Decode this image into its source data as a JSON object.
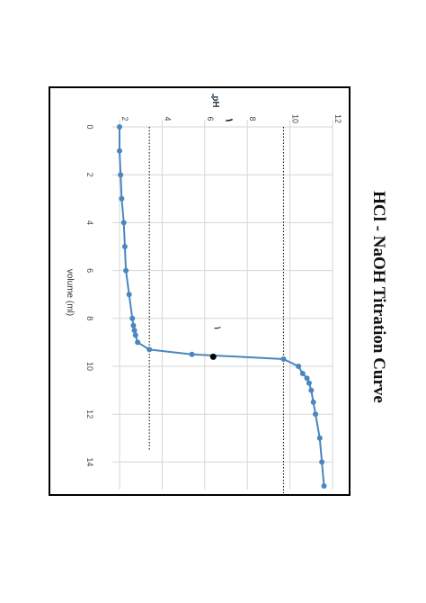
{
  "chart_data": {
    "type": "line",
    "title": "HCl - NaOH Titration Curve",
    "xlabel": "volume (ml)",
    "ylabel": "pH",
    "xlim": [
      0,
      15
    ],
    "ylim": [
      2,
      12
    ],
    "x_ticks": [
      "0",
      "2",
      "4",
      "6",
      "8",
      "10",
      "12",
      "14"
    ],
    "y_ticks": [
      "2",
      "4",
      "6",
      "8",
      "10",
      "12"
    ],
    "grid": true,
    "orientation": "rotated 90° clockwise",
    "series_color": "#4a86bf",
    "series": [
      {
        "name": "pH",
        "x": [
          0,
          1,
          2,
          3,
          4,
          5,
          6,
          7,
          8,
          8.3,
          8.5,
          8.7,
          9,
          9.3,
          9.5,
          9.7,
          10,
          10.3,
          10.5,
          10.7,
          11,
          11.5,
          12,
          13,
          14,
          15
        ],
        "y": [
          2.0,
          2.0,
          2.05,
          2.1,
          2.2,
          2.25,
          2.3,
          2.45,
          2.6,
          2.65,
          2.7,
          2.75,
          2.85,
          3.4,
          5.4,
          9.7,
          10.4,
          10.6,
          10.8,
          10.9,
          11.0,
          11.1,
          11.2,
          11.4,
          11.5,
          11.6
        ]
      }
    ],
    "reference_lines": [
      {
        "axis": "y",
        "value": 3.4
      },
      {
        "axis": "y",
        "value": 9.7
      }
    ],
    "equivalence_point": {
      "x": 9.6,
      "y": 6.4,
      "label": "١"
    },
    "marker": {
      "label": "١",
      "x": -0.2,
      "y": 7
    }
  }
}
